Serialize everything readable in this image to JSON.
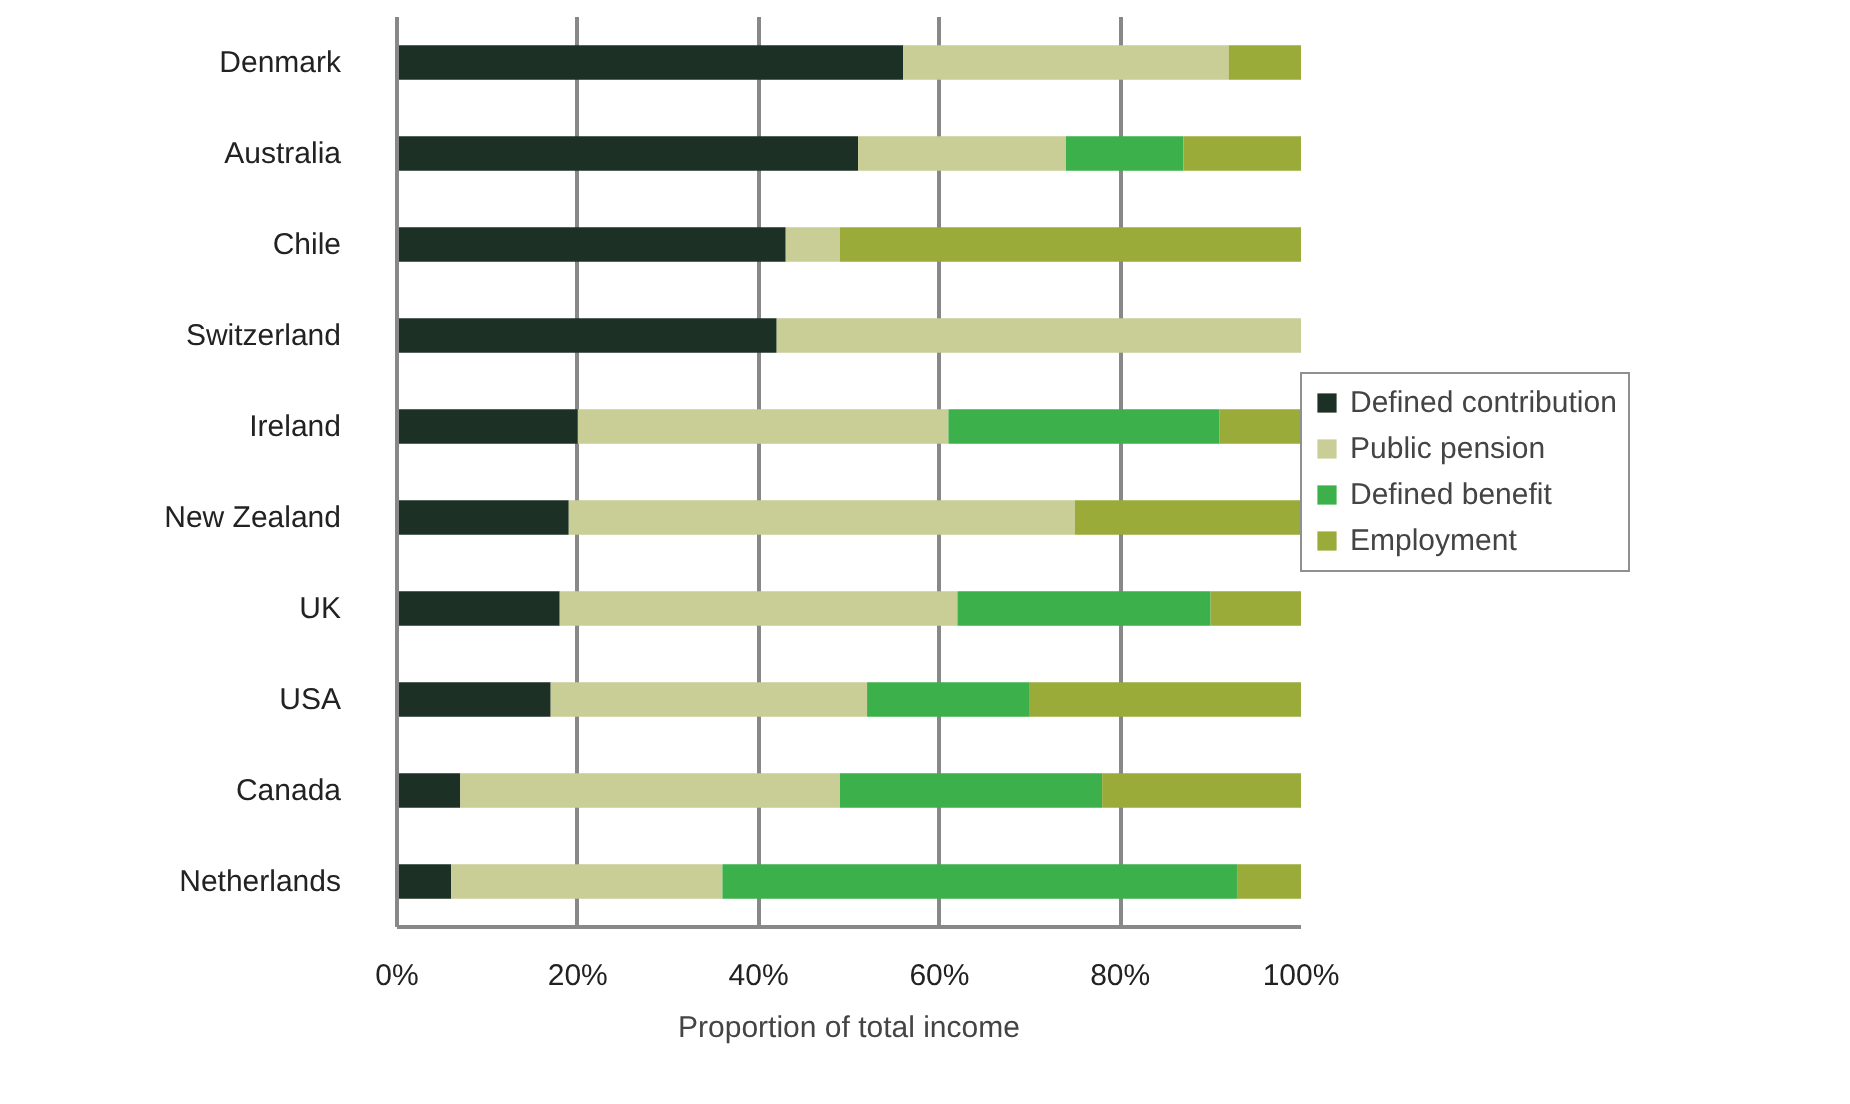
{
  "chart_data": {
    "type": "bar",
    "orientation": "horizontal",
    "stacked": true,
    "xlabel": "Proportion of total income",
    "categories": [
      "Denmark",
      "Australia",
      "Chile",
      "Switzerland",
      "Ireland",
      "New Zealand",
      "UK",
      "USA",
      "Canada",
      "Netherlands"
    ],
    "series": [
      {
        "name": "Defined contribution",
        "color": "#1c3026",
        "values": [
          56,
          51,
          43,
          42,
          20,
          19,
          18,
          17,
          7,
          6
        ]
      },
      {
        "name": "Public pension",
        "color": "#c9cd96",
        "values": [
          36,
          23,
          6,
          58,
          41,
          56,
          44,
          35,
          42,
          30
        ]
      },
      {
        "name": "Defined benefit",
        "color": "#3cb04a",
        "values": [
          0,
          13,
          0,
          0,
          30,
          0,
          28,
          18,
          29,
          57
        ]
      },
      {
        "name": "Employment",
        "color": "#9aab39",
        "values": [
          8,
          13,
          51,
          0,
          9,
          25,
          10,
          30,
          22,
          7
        ]
      }
    ],
    "xlim": [
      0,
      100
    ],
    "xticks": [
      {
        "value": 0,
        "label": "0%"
      },
      {
        "value": 20,
        "label": "20%"
      },
      {
        "value": 40,
        "label": "40%"
      },
      {
        "value": 60,
        "label": "60%"
      },
      {
        "value": 80,
        "label": "80%"
      },
      {
        "value": 100,
        "label": "100%"
      }
    ],
    "grid": "x",
    "legend": "right"
  }
}
